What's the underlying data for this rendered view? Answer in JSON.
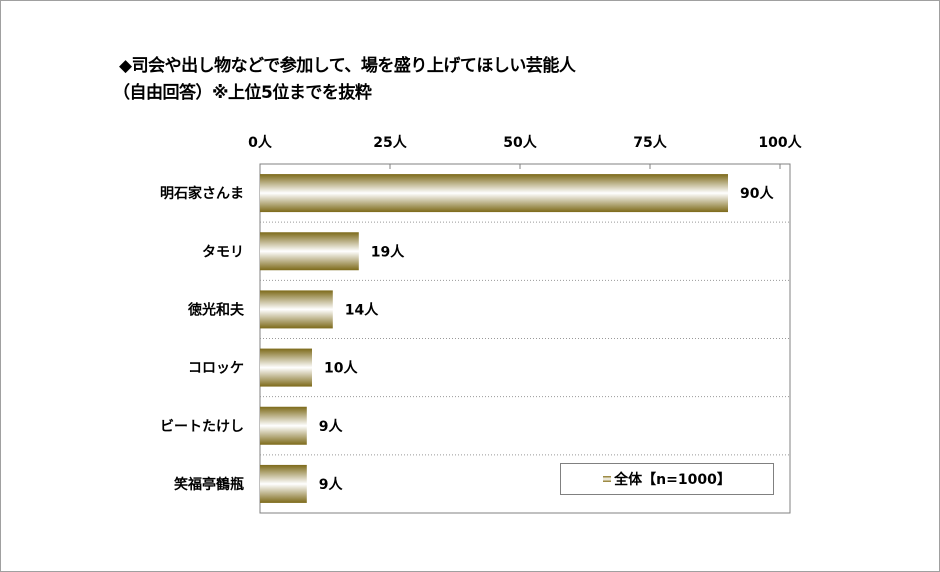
{
  "title_line1": "◆司会や出し物などで参加して、場を盛り上げてほしい芸能人",
  "title_line2": "（自由回答）※上位5位までを抜粋",
  "legend": "全体【n=1000】",
  "colors": {
    "bar_dark": "#7d6a1a",
    "bar_light": "#ffffff",
    "grid": "#999999"
  },
  "chart_data": {
    "type": "bar",
    "orientation": "horizontal",
    "categories": [
      "明石家さんま",
      "タモリ",
      "徳光和夫",
      "コロッケ",
      "ビートたけし",
      "笑福亭鶴瓶"
    ],
    "series": [
      {
        "name": "全体【n=1000】",
        "values": [
          90,
          19,
          14,
          10,
          9,
          9
        ]
      }
    ],
    "value_labels": [
      "90人",
      "19人",
      "14人",
      "10人",
      "9人",
      "9人"
    ],
    "xlim": [
      0,
      100
    ],
    "ticks": [
      0,
      25,
      50,
      75,
      100
    ],
    "tick_labels": [
      "0人",
      "25人",
      "50人",
      "75人",
      "100人"
    ],
    "axis_position": "top",
    "legend_position": "bottom-right"
  }
}
